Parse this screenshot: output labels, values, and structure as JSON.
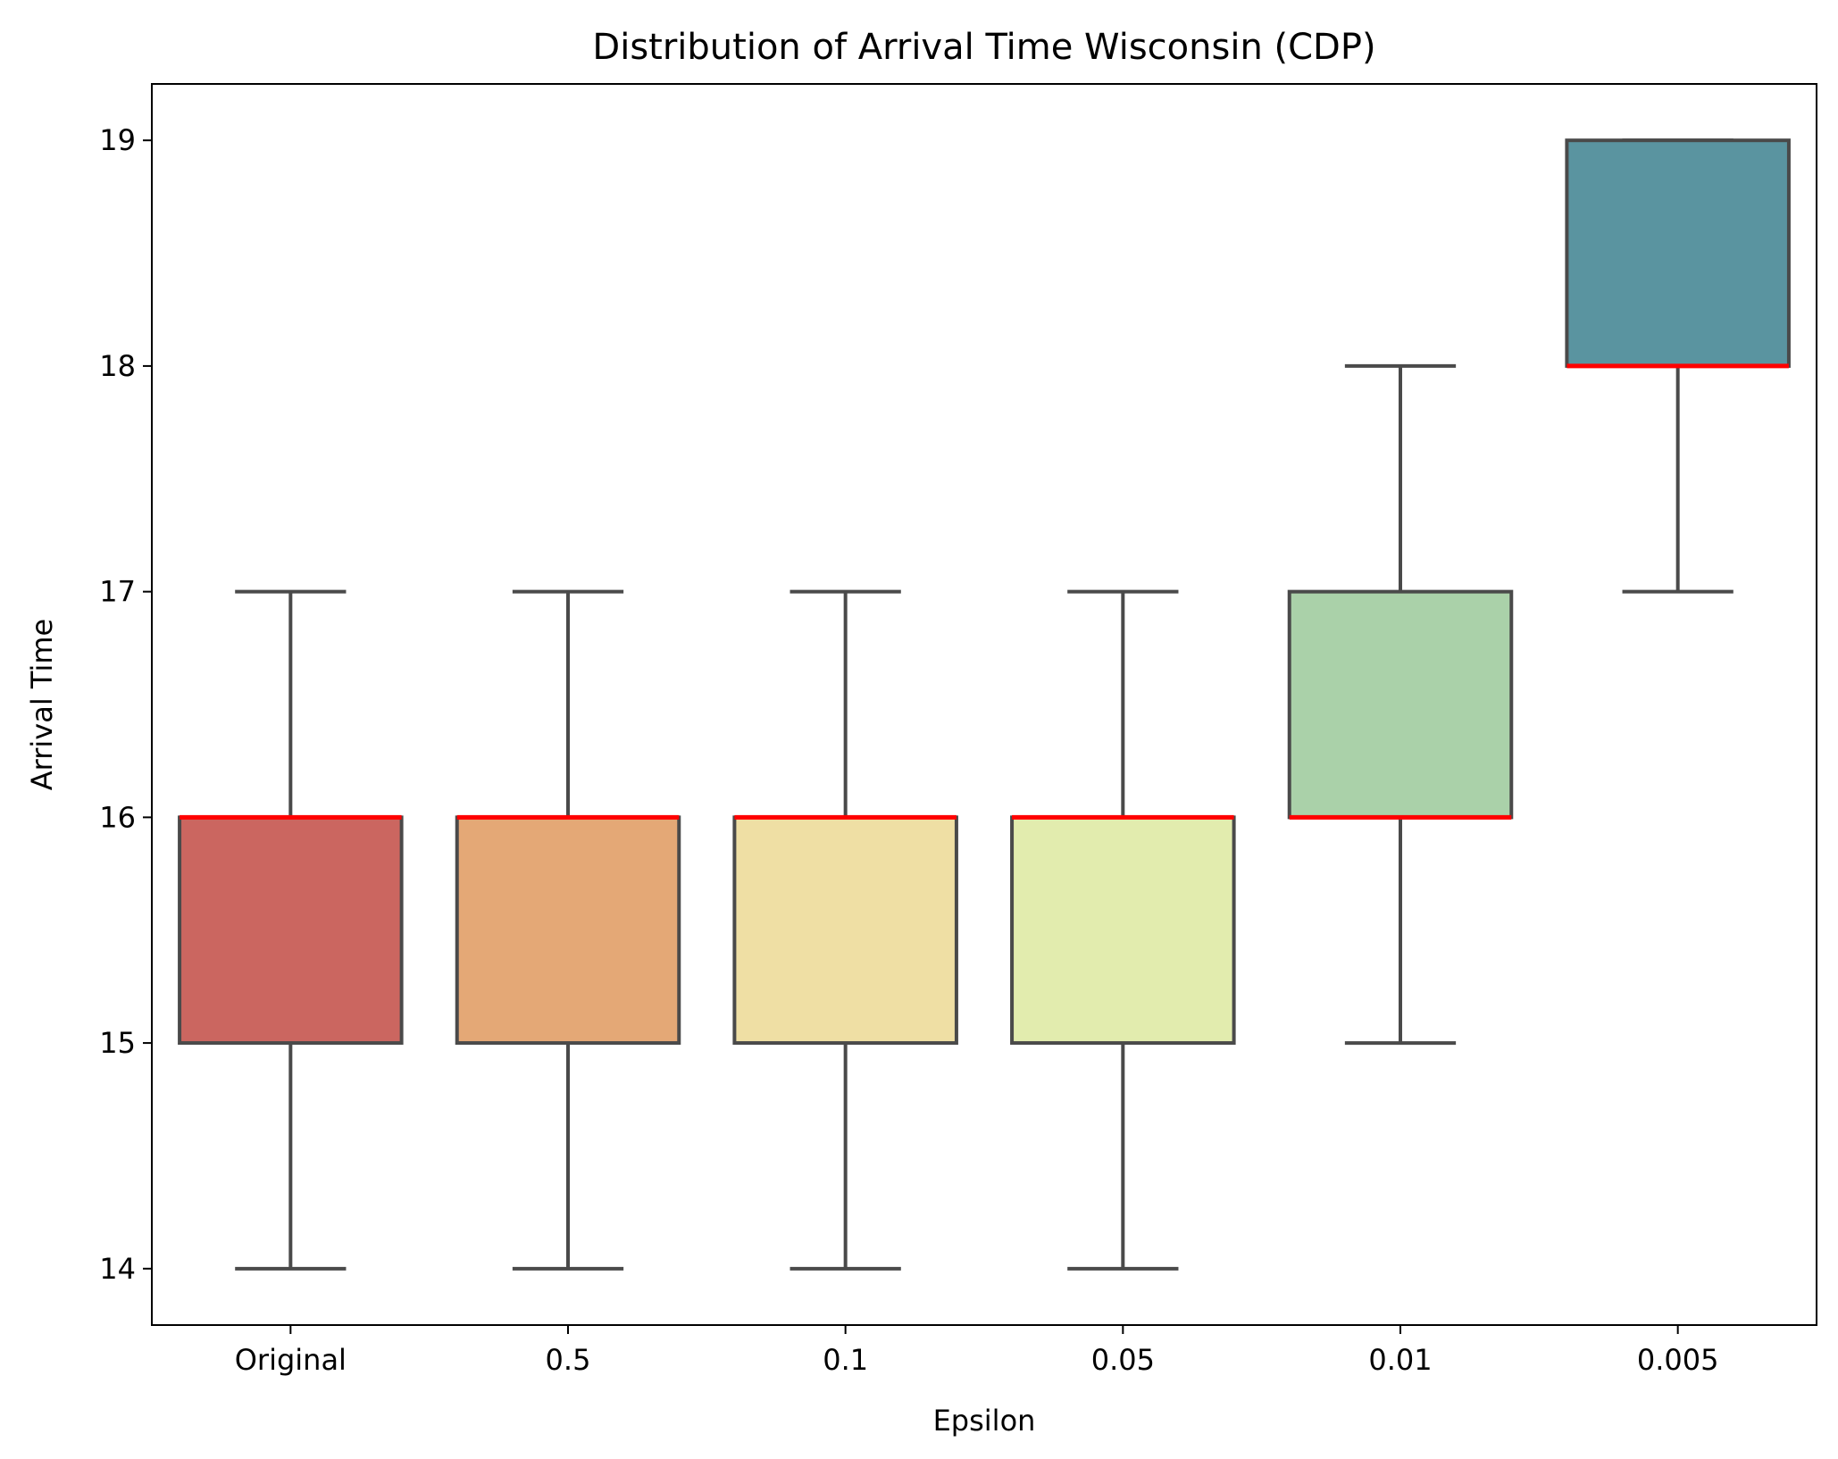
{
  "chart_data": {
    "type": "box",
    "title": "Distribution of Arrival Time Wisconsin (CDP)",
    "xlabel": "Epsilon",
    "ylabel": "Arrival Time",
    "ylim": [
      13.75,
      19.25
    ],
    "yticks": [
      14,
      15,
      16,
      17,
      18,
      19
    ],
    "categories": [
      "Original",
      "0.5",
      "0.1",
      "0.05",
      "0.01",
      "0.005"
    ],
    "boxes": [
      {
        "category": "Original",
        "whisker_low": 14,
        "q1": 15,
        "median": 16,
        "q3": 16,
        "whisker_high": 17,
        "color": "#cb6660"
      },
      {
        "category": "0.5",
        "whisker_low": 14,
        "q1": 15,
        "median": 16,
        "q3": 16,
        "whisker_high": 17,
        "color": "#e4a876"
      },
      {
        "category": "0.1",
        "whisker_low": 14,
        "q1": 15,
        "median": 16,
        "q3": 16,
        "whisker_high": 17,
        "color": "#efdfa4"
      },
      {
        "category": "0.05",
        "whisker_low": 14,
        "q1": 15,
        "median": 16,
        "q3": 16,
        "whisker_high": 17,
        "color": "#e2ecae"
      },
      {
        "category": "0.01",
        "whisker_low": 15,
        "q1": 16,
        "median": 16,
        "q3": 17,
        "whisker_high": 18,
        "color": "#aad1a9"
      },
      {
        "category": "0.005",
        "whisker_low": 17,
        "q1": 18,
        "median": 18,
        "q3": 19,
        "whisker_high": 19,
        "color": "#5a94a0"
      }
    ],
    "median_color": "#ff0000",
    "line_color": "#4a4a4a",
    "grid": false,
    "legend": "none"
  }
}
